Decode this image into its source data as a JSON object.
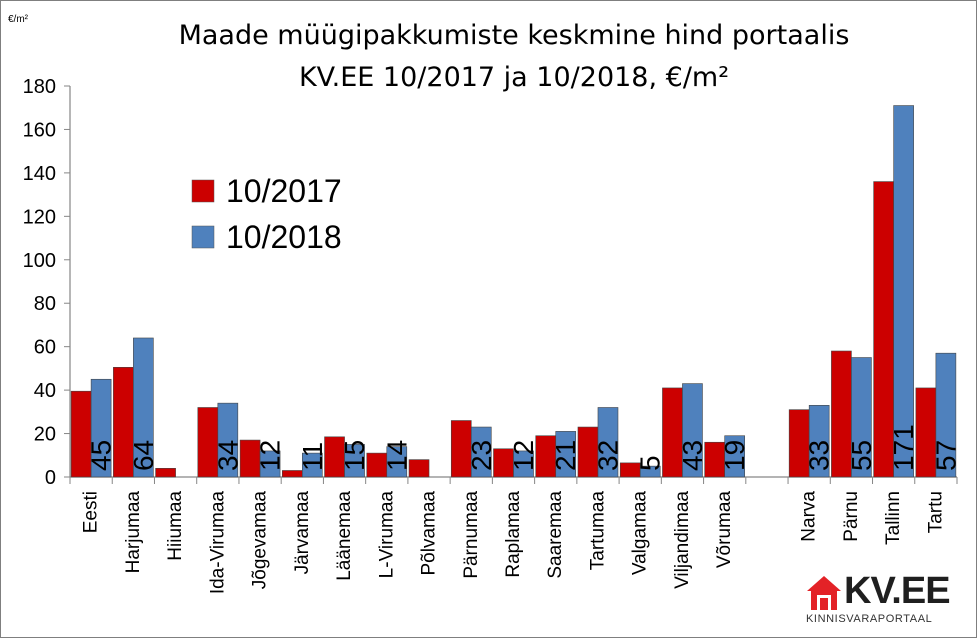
{
  "chart_data": {
    "type": "bar",
    "title": [
      "Maade müügipakkumiste keskmine hind portaalis",
      "KV.EE 10/2017 ja 10/2018, €/m²"
    ],
    "unit_label": "€/m²",
    "ylim": [
      0,
      180
    ],
    "yticks": [
      0,
      20,
      40,
      60,
      80,
      100,
      120,
      140,
      160,
      180
    ],
    "grid": false,
    "legend_position": "upper-left",
    "categories": [
      "Eesti",
      "Harjumaa",
      "Hiiumaa",
      "Ida-Virumaa",
      "Jõgevamaa",
      "Järvamaa",
      "Läänemaa",
      "L-Virumaa",
      "Põlvamaa",
      "Pärnumaa",
      "Raplamaa",
      "Saaremaa",
      "Tartumaa",
      "Valgamaa",
      "Viljandimaa",
      "Võrumaa",
      "",
      "Narva",
      "Pärnu",
      "Tallinn",
      "Tartu"
    ],
    "series": [
      {
        "name": "10/2017",
        "color": "#cc0000",
        "values": [
          39.5,
          50.5,
          4,
          32,
          17,
          3,
          18.5,
          11,
          8,
          26,
          13,
          19,
          23,
          6.5,
          41,
          16,
          null,
          31,
          58,
          136,
          41
        ]
      },
      {
        "name": "10/2018",
        "color": "#4f81bd",
        "values": [
          45,
          64,
          null,
          34,
          12,
          11,
          15,
          14,
          null,
          23,
          12,
          21,
          32,
          5,
          43,
          19,
          null,
          33,
          55,
          171,
          57
        ],
        "labels": [
          "45",
          "64",
          "",
          "34",
          "12",
          "11",
          "15",
          "14",
          "",
          "23",
          "12",
          "21",
          "32",
          "5",
          "43",
          "19",
          "",
          "33",
          "55",
          "171",
          "57"
        ]
      }
    ]
  },
  "logo": {
    "name": "KV.EE",
    "tagline": "KINNISVARAPORTAAL",
    "color": "#e32227"
  }
}
